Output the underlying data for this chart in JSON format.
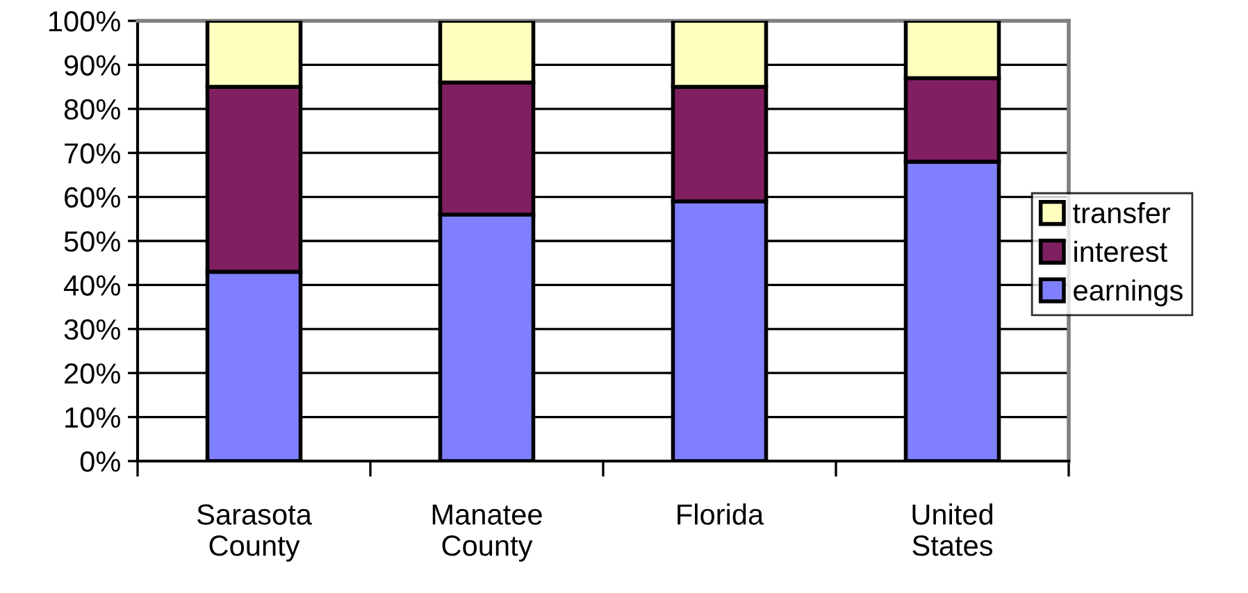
{
  "chart_data": {
    "type": "bar",
    "stacked": true,
    "categories": [
      "Sarasota\nCounty",
      "Manatee\nCounty",
      "Florida",
      "United\nStates"
    ],
    "series": [
      {
        "name": "earnings",
        "color": "#8080ff",
        "values": [
          43,
          56,
          59,
          68
        ]
      },
      {
        "name": "interest",
        "color": "#802060",
        "values": [
          42,
          30,
          26,
          19
        ]
      },
      {
        "name": "transfer",
        "color": "#ffffc0",
        "values": [
          15,
          14,
          15,
          13
        ]
      }
    ],
    "ylim": [
      0,
      100
    ],
    "yticks": [
      {
        "value": 0,
        "label": "0%"
      },
      {
        "value": 10,
        "label": "10%"
      },
      {
        "value": 20,
        "label": "20%"
      },
      {
        "value": 30,
        "label": "30%"
      },
      {
        "value": 40,
        "label": "40%"
      },
      {
        "value": 50,
        "label": "50%"
      },
      {
        "value": 60,
        "label": "60%"
      },
      {
        "value": 70,
        "label": "70%"
      },
      {
        "value": 80,
        "label": "80%"
      },
      {
        "value": 90,
        "label": "90%"
      },
      {
        "value": 100,
        "label": "100%"
      }
    ],
    "grid": "y",
    "legend": "right"
  }
}
